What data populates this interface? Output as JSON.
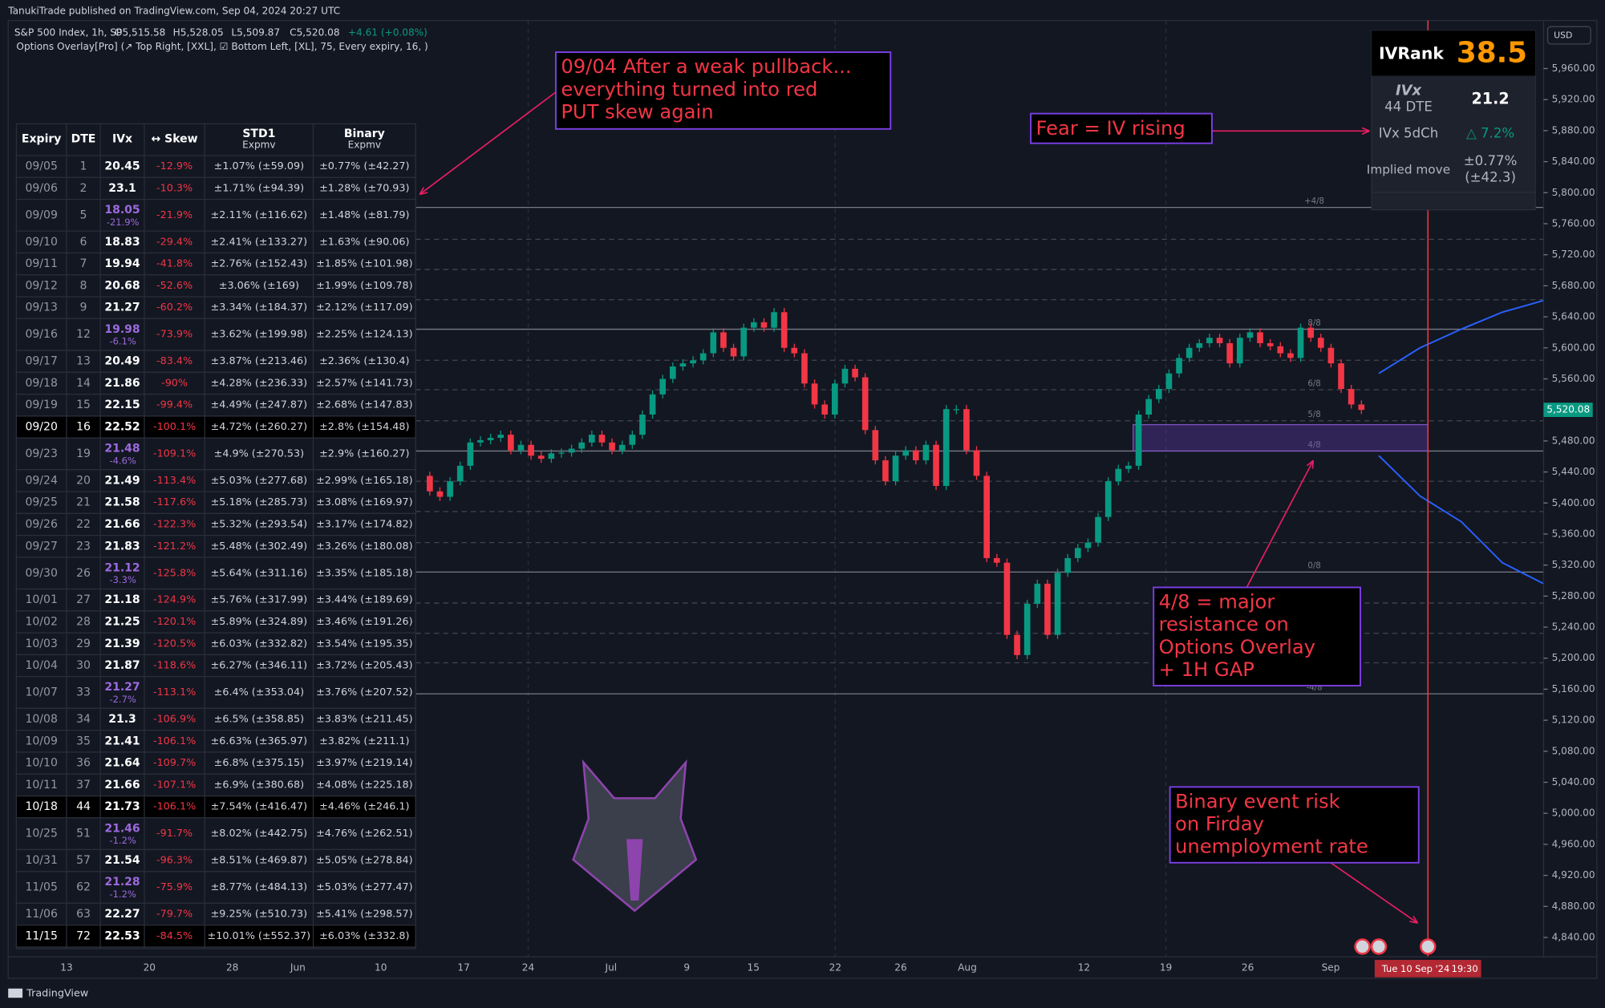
{
  "header": {
    "publisher": "TanukiTrade published on TradingView.com, Sep 04, 2024 20:27 UTC",
    "symbol": "S&P 500 Index, 1h, SP",
    "quote": [
      "O5,515.58",
      "H5,528.05",
      "L5,509.87",
      "C5,520.08",
      "+4.61 (+0.08%)"
    ],
    "indicator": "Options Overlay[Pro] (↗ Top Right, [XXL], ☑ Bottom Left, [XL], 75, Every expiry, 16, )"
  },
  "chart_data": {
    "type": "candlestick",
    "currency": "USD",
    "ylim": [
      4815,
      6022
    ],
    "yticks": [
      {
        "value": 5960,
        "label": "5,960.00"
      },
      {
        "value": 5920,
        "label": "5,920.00"
      },
      {
        "value": 5880,
        "label": "5,880.00"
      },
      {
        "value": 5840,
        "label": "5,840.00"
      },
      {
        "value": 5800,
        "label": "5,800.00"
      },
      {
        "value": 5760,
        "label": "5,760.00"
      },
      {
        "value": 5720,
        "label": "5,720.00"
      },
      {
        "value": 5680,
        "label": "5,680.00"
      },
      {
        "value": 5640,
        "label": "5,640.00"
      },
      {
        "value": 5600,
        "label": "5,600.00"
      },
      {
        "value": 5560,
        "label": "5,560.00"
      },
      {
        "value": 5480,
        "label": "5,480.00"
      },
      {
        "value": 5440,
        "label": "5,440.00"
      },
      {
        "value": 5400,
        "label": "5,400.00"
      },
      {
        "value": 5360,
        "label": "5,360.00"
      },
      {
        "value": 5320,
        "label": "5,320.00"
      },
      {
        "value": 5280,
        "label": "5,280.00"
      },
      {
        "value": 5240,
        "label": "5,240.00"
      },
      {
        "value": 5200,
        "label": "5,200.00"
      },
      {
        "value": 5160,
        "label": "5,160.00"
      },
      {
        "value": 5120,
        "label": "5,120.00"
      },
      {
        "value": 5080,
        "label": "5,080.00"
      },
      {
        "value": 5040,
        "label": "5,040.00"
      },
      {
        "value": 5000,
        "label": "5,000.00"
      },
      {
        "value": 4960,
        "label": "4,960.00"
      },
      {
        "value": 4920,
        "label": "4,920.00"
      },
      {
        "value": 4880,
        "label": "4,880.00"
      },
      {
        "value": 4840,
        "label": "4,840.00"
      }
    ],
    "current_price": {
      "value": 5520.08,
      "label": "5,520.08"
    },
    "x_labels": [
      "13",
      "20",
      "28",
      "Jun",
      "10",
      "17",
      "24",
      "Jul",
      "9",
      "15",
      "22",
      "26",
      "Aug",
      "12",
      "19",
      "26",
      "Sep"
    ],
    "closes": [
      5435,
      5415,
      5408,
      5428,
      5448,
      5478,
      5481,
      5484,
      5488,
      5468,
      5475,
      5461,
      5457,
      5464,
      5465,
      5470,
      5478,
      5488,
      5478,
      5468,
      5475,
      5488,
      5514,
      5540,
      5560,
      5576,
      5580,
      5584,
      5593,
      5620,
      5600,
      5589,
      5626,
      5633,
      5626,
      5646,
      5600,
      5593,
      5554,
      5527,
      5514,
      5554,
      5573,
      5562,
      5494,
      5455,
      5428,
      5461,
      5468,
      5455,
      5475,
      5422,
      5521,
      5521,
      5468,
      5435,
      5329,
      5323,
      5230,
      5204,
      5270,
      5296,
      5230,
      5310,
      5329,
      5342,
      5349,
      5382,
      5428,
      5444,
      5448,
      5514,
      5534,
      5547,
      5567,
      5587,
      5600,
      5606,
      5613,
      5606,
      5580,
      5613,
      5620,
      5606,
      5602,
      5593,
      5587,
      5626,
      5613,
      5600,
      5580,
      5547,
      5527,
      5520
    ],
    "upper_band": [
      5567,
      5600,
      5624,
      5646,
      5661
    ],
    "lower_band": [
      5461,
      5409,
      5376,
      5323,
      5296
    ],
    "levels": [
      {
        "value": 5781,
        "label": "+4/8",
        "style": "solid"
      },
      {
        "value": 5624,
        "label": "8/8",
        "style": "solid"
      },
      {
        "value": 5546,
        "label": "6/8",
        "style": "dashed"
      },
      {
        "value": 5506,
        "label": "5/8",
        "style": "dashed"
      },
      {
        "value": 5467,
        "label": "4/8",
        "style": "solid"
      },
      {
        "value": 5311,
        "label": "0/8",
        "style": "solid"
      },
      {
        "value": 5154,
        "label": "-4/8",
        "style": "solid"
      }
    ],
    "dashed_levels": [
      5740,
      5701,
      5662,
      5584,
      5428,
      5389,
      5349,
      5271,
      5232,
      5194
    ],
    "gap_zone": [
      5467,
      5501
    ],
    "crosshair_label": "Tue 10 Sep '24",
    "crosshair_time": "19:30"
  },
  "iv_panel": {
    "rank_label": "IVRank",
    "rank": "38.5",
    "ivx_label": "IVx",
    "dte_label": "44 DTE",
    "ivx": "21.2",
    "change_label": "IVx 5dCh",
    "change": "△ 7.2%",
    "move_label": "Implied move",
    "move": "±0.77%",
    "move_points": "(±42.3)"
  },
  "table": {
    "header": [
      "Expiry",
      "DTE",
      "IVx",
      "↔ Skew",
      "STD1",
      "Binary"
    ],
    "subheader": "Expmv",
    "rows": [
      {
        "cells": [
          "09/05",
          "1",
          "20.45",
          "-12.9%",
          "±1.07% (±59.09)",
          "±0.77% (±42.27)"
        ]
      },
      {
        "cells": [
          "09/06",
          "2",
          "23.1",
          "-10.3%",
          "±1.71% (±94.39)",
          "±1.28% (±70.93)"
        ]
      },
      {
        "cells": [
          "09/09",
          "5",
          "18.05",
          "-21.9%",
          "±2.11% (±116.62)",
          "±1.48% (±81.79)"
        ],
        "ivx_change": "-21.9%"
      },
      {
        "cells": [
          "09/10",
          "6",
          "18.83",
          "-29.4%",
          "±2.41% (±133.27)",
          "±1.63% (±90.06)"
        ]
      },
      {
        "cells": [
          "09/11",
          "7",
          "19.94",
          "-41.8%",
          "±2.76% (±152.43)",
          "±1.85% (±101.98)"
        ]
      },
      {
        "cells": [
          "09/12",
          "8",
          "20.68",
          "-52.6%",
          "±3.06% (±169)",
          "±1.99% (±109.78)"
        ]
      },
      {
        "cells": [
          "09/13",
          "9",
          "21.27",
          "-60.2%",
          "±3.34% (±184.37)",
          "±2.12% (±117.09)"
        ]
      },
      {
        "cells": [
          "09/16",
          "12",
          "19.98",
          "-73.9%",
          "±3.62% (±199.98)",
          "±2.25% (±124.13)"
        ],
        "ivx_change": "-6.1%"
      },
      {
        "cells": [
          "09/17",
          "13",
          "20.49",
          "-83.4%",
          "±3.87% (±213.46)",
          "±2.36% (±130.4)"
        ]
      },
      {
        "cells": [
          "09/18",
          "14",
          "21.86",
          "-90%",
          "±4.28% (±236.33)",
          "±2.57% (±141.73)"
        ]
      },
      {
        "cells": [
          "09/19",
          "15",
          "22.15",
          "-99.4%",
          "±4.49% (±247.87)",
          "±2.68% (±147.83)"
        ]
      },
      {
        "cells": [
          "09/20",
          "16",
          "22.52",
          "-100.1%",
          "±4.72% (±260.27)",
          "±2.8% (±154.48)"
        ],
        "highlight": true
      },
      {
        "cells": [
          "09/23",
          "19",
          "21.48",
          "-109.1%",
          "±4.9% (±270.53)",
          "±2.9% (±160.27)"
        ],
        "ivx_change": "-4.6%"
      },
      {
        "cells": [
          "09/24",
          "20",
          "21.49",
          "-113.4%",
          "±5.03% (±277.68)",
          "±2.99% (±165.18)"
        ]
      },
      {
        "cells": [
          "09/25",
          "21",
          "21.58",
          "-117.6%",
          "±5.18% (±285.73)",
          "±3.08% (±169.97)"
        ]
      },
      {
        "cells": [
          "09/26",
          "22",
          "21.66",
          "-122.3%",
          "±5.32% (±293.54)",
          "±3.17% (±174.82)"
        ]
      },
      {
        "cells": [
          "09/27",
          "23",
          "21.83",
          "-121.2%",
          "±5.48% (±302.49)",
          "±3.26% (±180.08)"
        ]
      },
      {
        "cells": [
          "09/30",
          "26",
          "21.12",
          "-125.8%",
          "±5.64% (±311.16)",
          "±3.35% (±185.18)"
        ],
        "ivx_change": "-3.3%"
      },
      {
        "cells": [
          "10/01",
          "27",
          "21.18",
          "-124.9%",
          "±5.76% (±317.99)",
          "±3.44% (±189.69)"
        ]
      },
      {
        "cells": [
          "10/02",
          "28",
          "21.25",
          "-120.1%",
          "±5.89% (±324.89)",
          "±3.46% (±191.26)"
        ]
      },
      {
        "cells": [
          "10/03",
          "29",
          "21.39",
          "-120.5%",
          "±6.03% (±332.82)",
          "±3.54% (±195.35)"
        ]
      },
      {
        "cells": [
          "10/04",
          "30",
          "21.87",
          "-118.6%",
          "±6.27% (±346.11)",
          "±3.72% (±205.43)"
        ]
      },
      {
        "cells": [
          "10/07",
          "33",
          "21.27",
          "-113.1%",
          "±6.4% (±353.04)",
          "±3.76% (±207.52)"
        ],
        "ivx_change": "-2.7%"
      },
      {
        "cells": [
          "10/08",
          "34",
          "21.3",
          "-106.9%",
          "±6.5% (±358.85)",
          "±3.83% (±211.45)"
        ]
      },
      {
        "cells": [
          "10/09",
          "35",
          "21.41",
          "-106.1%",
          "±6.63% (±365.97)",
          "±3.82% (±211.1)"
        ]
      },
      {
        "cells": [
          "10/10",
          "36",
          "21.64",
          "-109.7%",
          "±6.8% (±375.15)",
          "±3.97% (±219.14)"
        ]
      },
      {
        "cells": [
          "10/11",
          "37",
          "21.66",
          "-107.1%",
          "±6.9% (±380.68)",
          "±4.08% (±225.18)"
        ]
      },
      {
        "cells": [
          "10/18",
          "44",
          "21.73",
          "-106.1%",
          "±7.54% (±416.47)",
          "±4.46% (±246.1)"
        ],
        "highlight": true
      },
      {
        "cells": [
          "10/25",
          "51",
          "21.46",
          "-91.7%",
          "±8.02% (±442.75)",
          "±4.76% (±262.51)"
        ],
        "ivx_change": "-1.2%"
      },
      {
        "cells": [
          "10/31",
          "57",
          "21.54",
          "-96.3%",
          "±8.51% (±469.87)",
          "±5.05% (±278.84)"
        ]
      },
      {
        "cells": [
          "11/05",
          "62",
          "21.28",
          "-75.9%",
          "±8.77% (±484.13)",
          "±5.03% (±277.47)"
        ],
        "ivx_change": "-1.2%"
      },
      {
        "cells": [
          "11/06",
          "63",
          "22.27",
          "-79.7%",
          "±9.25% (±510.73)",
          "±5.41% (±298.57)"
        ]
      },
      {
        "cells": [
          "11/15",
          "72",
          "22.53",
          "-84.5%",
          "±10.01% (±552.37)",
          "±6.03% (±332.8)"
        ],
        "highlight": true
      }
    ]
  },
  "annotations": [
    [
      "09/04 After a weak pullback...",
      "everything turned into red",
      "PUT skew again"
    ],
    [
      "Fear = IV rising"
    ],
    [
      "4/8 = major",
      "resistance on",
      "Options Overlay",
      "+ 1H GAP"
    ],
    [
      "Binary event risk",
      "on Firday",
      "unemployment rate"
    ]
  ],
  "footer": "TradingView"
}
